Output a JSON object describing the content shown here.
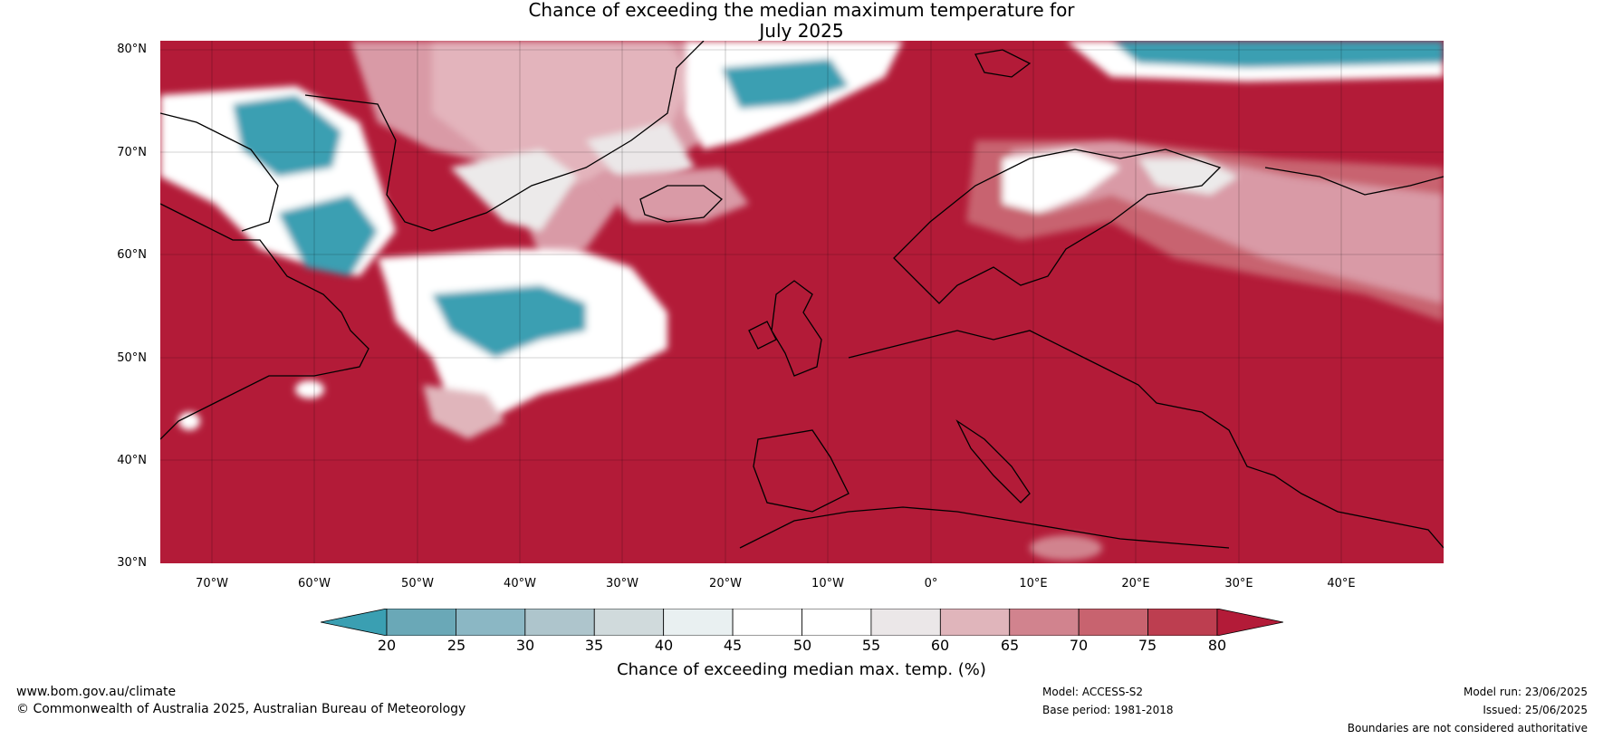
{
  "title": {
    "line1": "Chance of exceeding the median maximum temperature for",
    "line2": "July 2025"
  },
  "map": {
    "latitude_labels": [
      "80°N",
      "70°N",
      "60°N",
      "50°N",
      "40°N",
      "30°N"
    ],
    "longitude_labels": [
      "70°W",
      "60°W",
      "50°W",
      "40°W",
      "30°W",
      "20°W",
      "10°W",
      "0°",
      "10°E",
      "20°E",
      "30°E",
      "40°E"
    ],
    "ocean_color": "#b31b38"
  },
  "colorbar": {
    "label": "Chance of exceeding median max. temp. (%)",
    "ticks": [
      "20",
      "25",
      "30",
      "35",
      "40",
      "45",
      "50",
      "55",
      "60",
      "65",
      "70",
      "75",
      "80"
    ],
    "colors": [
      "#3a9fb2",
      "#6aa8b7",
      "#8bb7c4",
      "#aec5cc",
      "#d0dadc",
      "#e9f0f1",
      "#ffffff",
      "#ffffff",
      "#ebe7e8",
      "#e0b5bb",
      "#d1838e",
      "#c8636f",
      "#bd3e50",
      "#b31b38"
    ]
  },
  "footer": {
    "website": "www.bom.gov.au/climate",
    "copyright": "© Commonwealth of Australia 2025, Australian Bureau of Meteorology",
    "model": "Model: ACCESS-S2",
    "base_period": "Base period: 1981-2018",
    "model_run": "Model run: 23/06/2025",
    "issued": "Issued: 25/06/2025",
    "disclaimer": "Boundaries are not considered authoritative"
  }
}
